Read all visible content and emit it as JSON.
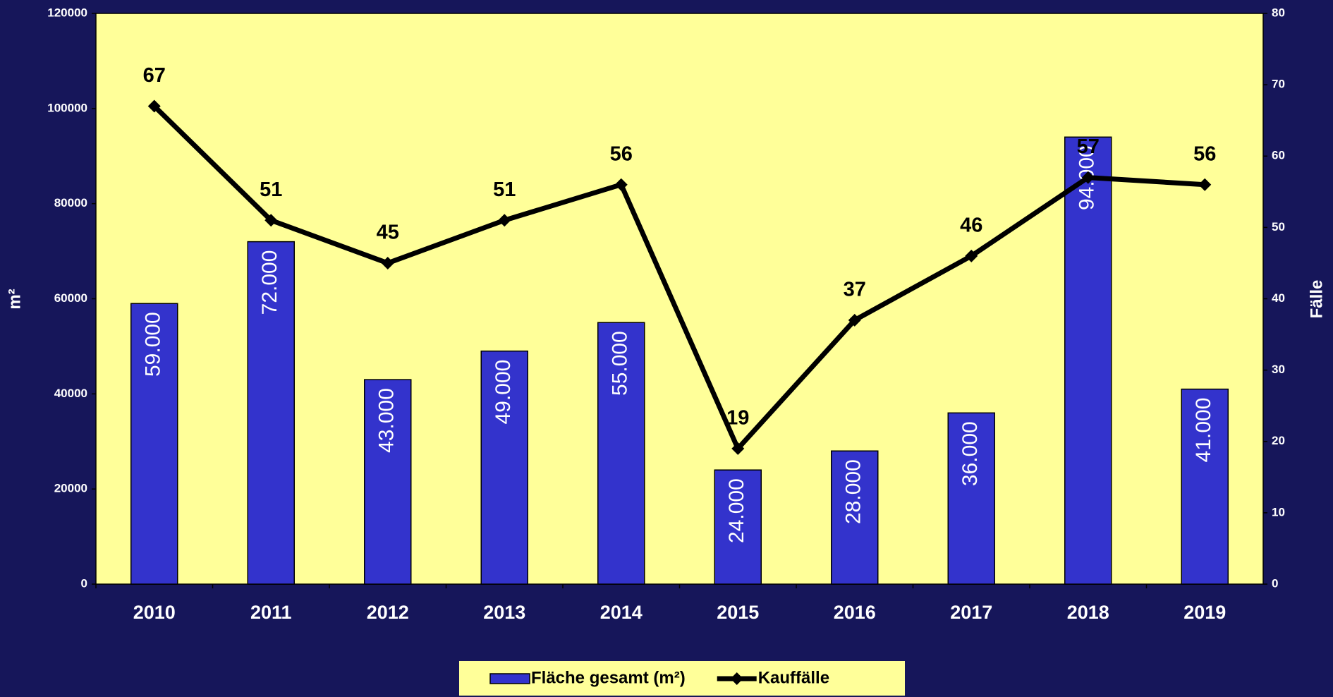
{
  "chart_data": {
    "type": "bar",
    "categories": [
      "2010",
      "2011",
      "2012",
      "2013",
      "2014",
      "2015",
      "2016",
      "2017",
      "2018",
      "2019"
    ],
    "series": [
      {
        "name": "Fläche gesamt (m²)",
        "type": "bar",
        "color": "#3333cc",
        "values": [
          59000,
          72000,
          43000,
          49000,
          55000,
          24000,
          28000,
          36000,
          94000,
          41000
        ],
        "value_labels": [
          "59.000",
          "72.000",
          "43.000",
          "49.000",
          "55.000",
          "24.000",
          "28.000",
          "36.000",
          "94.000",
          "41.000"
        ]
      },
      {
        "name": "Kauffälle",
        "type": "line",
        "color": "#000000",
        "axis": "y2",
        "values": [
          67,
          51,
          45,
          51,
          56,
          19,
          37,
          46,
          57,
          56
        ]
      }
    ],
    "y_label": "m²",
    "y2_label": "Fälle",
    "ylim": [
      0,
      120000
    ],
    "yticks": [
      0,
      20000,
      40000,
      60000,
      80000,
      100000,
      120000
    ],
    "y2lim": [
      0,
      80
    ],
    "y2ticks": [
      0,
      10,
      20,
      30,
      40,
      50,
      60,
      70,
      80
    ],
    "legend": "bottom"
  }
}
